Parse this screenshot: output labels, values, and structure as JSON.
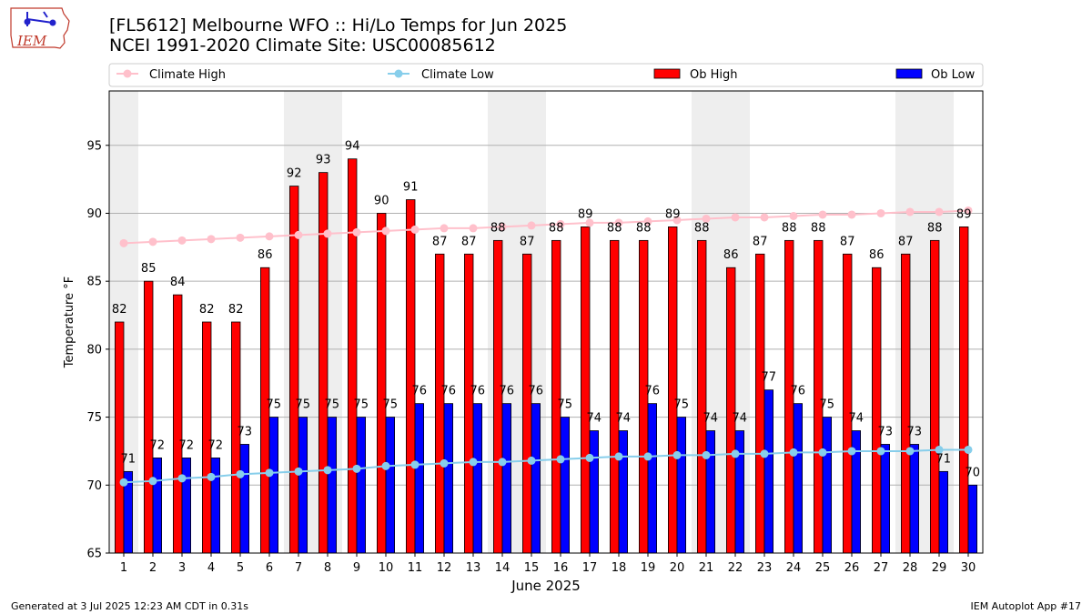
{
  "header": {
    "title_line1": "[FL5612] Melbourne WFO :: Hi/Lo Temps for Jun 2025",
    "title_line2": "NCEI 1991-2020 Climate Site: USC00085612"
  },
  "logo": {
    "text": "IEM",
    "icon": "iem-iowa-logo"
  },
  "footer": {
    "left": "Generated at 3 Jul 2025 12:23 AM CDT in 0.31s",
    "right": "IEM Autoplot App #17"
  },
  "colors": {
    "ob_high": "#ff0000",
    "ob_low": "#0000ff",
    "climate_high": "#ffc0cb",
    "climate_low": "#87ceeb",
    "weekend_shade": "#eeeeee",
    "grid": "#b0b0b0"
  },
  "chart_data": {
    "type": "bar",
    "xlabel": "June 2025",
    "ylabel": "Temperature °F",
    "ylim": [
      65,
      99
    ],
    "yticks": [
      65,
      70,
      75,
      80,
      85,
      90,
      95
    ],
    "grid": "horizontal",
    "legend_placement": "top",
    "categories": [
      "1",
      "2",
      "3",
      "4",
      "5",
      "6",
      "7",
      "8",
      "9",
      "10",
      "11",
      "12",
      "13",
      "14",
      "15",
      "16",
      "17",
      "18",
      "19",
      "20",
      "21",
      "22",
      "23",
      "24",
      "25",
      "26",
      "27",
      "28",
      "29",
      "30"
    ],
    "shaded_days": [
      1,
      7,
      8,
      14,
      15,
      21,
      22,
      28,
      29
    ],
    "series": [
      {
        "name": "Climate High",
        "kind": "line",
        "values": [
          87.8,
          87.9,
          88.0,
          88.1,
          88.2,
          88.3,
          88.4,
          88.5,
          88.6,
          88.7,
          88.8,
          88.9,
          88.9,
          89.0,
          89.1,
          89.2,
          89.3,
          89.3,
          89.4,
          89.5,
          89.6,
          89.7,
          89.7,
          89.8,
          89.9,
          89.9,
          90.0,
          90.1,
          90.1,
          90.2
        ]
      },
      {
        "name": "Climate Low",
        "kind": "line",
        "values": [
          70.2,
          70.3,
          70.5,
          70.6,
          70.8,
          70.9,
          71.0,
          71.1,
          71.2,
          71.4,
          71.5,
          71.6,
          71.7,
          71.7,
          71.8,
          71.9,
          72.0,
          72.1,
          72.1,
          72.2,
          72.2,
          72.3,
          72.3,
          72.4,
          72.4,
          72.5,
          72.5,
          72.5,
          72.6,
          72.6
        ]
      },
      {
        "name": "Ob High",
        "kind": "bar",
        "values": [
          82,
          85,
          84,
          82,
          82,
          86,
          92,
          93,
          94,
          90,
          91,
          87,
          87,
          88,
          87,
          88,
          89,
          88,
          88,
          89,
          88,
          86,
          87,
          88,
          88,
          87,
          86,
          87,
          88,
          89
        ]
      },
      {
        "name": "Ob Low",
        "kind": "bar",
        "values": [
          71,
          72,
          72,
          72,
          73,
          75,
          75,
          75,
          75,
          75,
          76,
          76,
          76,
          76,
          76,
          75,
          74,
          74,
          76,
          75,
          74,
          74,
          77,
          76,
          75,
          74,
          73,
          73,
          71,
          70
        ]
      }
    ]
  }
}
